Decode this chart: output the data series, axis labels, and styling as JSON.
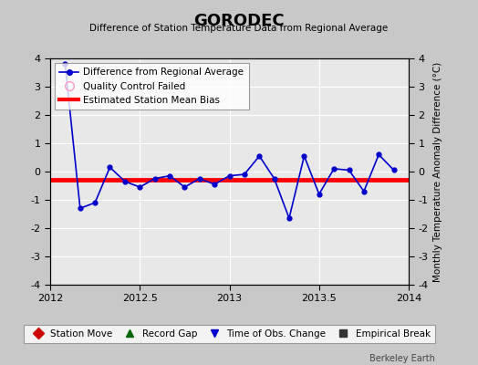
{
  "title": "GORODEC",
  "subtitle": "Difference of Station Temperature Data from Regional Average",
  "ylabel_right": "Monthly Temperature Anomaly Difference (°C)",
  "xlim": [
    2012.0,
    2014.0
  ],
  "ylim": [
    -4,
    4
  ],
  "yticks": [
    -4,
    -3,
    -2,
    -1,
    0,
    1,
    2,
    3,
    4
  ],
  "xticks": [
    2012,
    2012.5,
    2013,
    2013.5,
    2014
  ],
  "xtick_labels": [
    "2012",
    "2012.5",
    "2013",
    "2013.5",
    "2014"
  ],
  "bias_value": -0.3,
  "line_color": "#0000CC",
  "bias_color": "#FF0000",
  "plot_bg_color": "#E8E8E8",
  "fig_bg_color": "#C8C8C8",
  "grid_color": "#FFFFFF",
  "x_data": [
    2012.083,
    2012.167,
    2012.25,
    2012.333,
    2012.417,
    2012.5,
    2012.583,
    2012.667,
    2012.75,
    2012.833,
    2012.917,
    2013.0,
    2013.083,
    2013.167,
    2013.25,
    2013.333,
    2013.417,
    2013.5,
    2013.583,
    2013.667,
    2013.75,
    2013.833,
    2013.917
  ],
  "y_data": [
    3.8,
    -1.3,
    -1.1,
    0.15,
    -0.35,
    -0.55,
    -0.25,
    -0.15,
    -0.55,
    -0.25,
    -0.45,
    -0.15,
    -0.1,
    0.55,
    -0.25,
    -1.65,
    0.55,
    -0.8,
    0.1,
    0.05,
    -0.7,
    0.6,
    0.05
  ],
  "watermark": "Berkeley Earth",
  "legend1_label": "Difference from Regional Average",
  "legend2_label": "Quality Control Failed",
  "legend3_label": "Estimated Station Mean Bias",
  "bottom_legend_items": [
    {
      "marker": "D",
      "color": "#CC0000",
      "label": "Station Move"
    },
    {
      "marker": "^",
      "color": "#006600",
      "label": "Record Gap"
    },
    {
      "marker": "v",
      "color": "#0000CC",
      "label": "Time of Obs. Change"
    },
    {
      "marker": "s",
      "color": "#333333",
      "label": "Empirical Break"
    }
  ]
}
